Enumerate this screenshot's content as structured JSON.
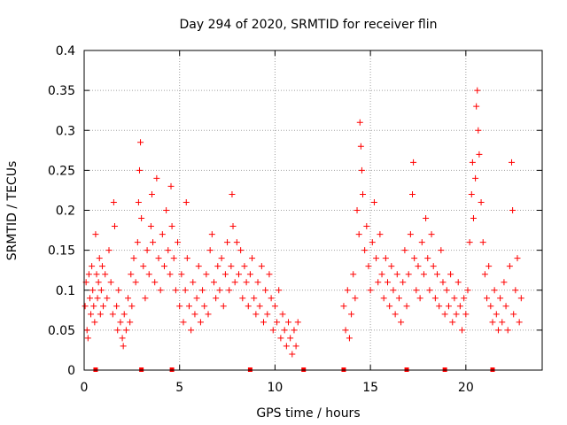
{
  "chart_data": {
    "type": "scatter",
    "title": "Day 294 of 2020, SRMTID for receiver flin",
    "xlabel": "GPS time / hours",
    "ylabel": "SRMTID / TECUs",
    "xlim": [
      0,
      24
    ],
    "ylim": [
      0,
      0.4
    ],
    "xticks": [
      0,
      5,
      10,
      15,
      20
    ],
    "xtick_labels": [
      "0",
      "5",
      "10",
      "15",
      "20"
    ],
    "yticks": [
      0,
      0.05,
      0.1,
      0.15,
      0.2,
      0.25,
      0.3,
      0.35,
      0.4
    ],
    "ytick_labels": [
      "0",
      "0.05",
      "0.1",
      "0.15",
      "0.2",
      "0.25",
      "0.3",
      "0.35",
      "0.4"
    ],
    "grid": true,
    "marker": "+",
    "color": "#ff0000",
    "series": [
      {
        "name": "SRMTID",
        "points": [
          [
            0.05,
            0.08
          ],
          [
            0.1,
            0.11
          ],
          [
            0.15,
            0.05
          ],
          [
            0.2,
            0.04
          ],
          [
            0.25,
            0.12
          ],
          [
            0.3,
            0.09
          ],
          [
            0.35,
            0.07
          ],
          [
            0.4,
            0.13
          ],
          [
            0.45,
            0.1
          ],
          [
            0.5,
            0.08
          ],
          [
            0.55,
            0.06
          ],
          [
            0.6,
            0.17
          ],
          [
            0.65,
            0.12
          ],
          [
            0.7,
            0.09
          ],
          [
            0.75,
            0.11
          ],
          [
            0.8,
            0.14
          ],
          [
            0.85,
            0.07
          ],
          [
            0.9,
            0.1
          ],
          [
            0.95,
            0.13
          ],
          [
            1.0,
            0.08
          ],
          [
            1.1,
            0.12
          ],
          [
            1.2,
            0.09
          ],
          [
            1.3,
            0.15
          ],
          [
            1.4,
            0.11
          ],
          [
            1.5,
            0.07
          ],
          [
            1.55,
            0.21
          ],
          [
            1.6,
            0.18
          ],
          [
            1.7,
            0.08
          ],
          [
            1.75,
            0.05
          ],
          [
            1.8,
            0.1
          ],
          [
            1.9,
            0.06
          ],
          [
            2.0,
            0.04
          ],
          [
            2.05,
            0.03
          ],
          [
            2.1,
            0.07
          ],
          [
            2.2,
            0.05
          ],
          [
            2.3,
            0.09
          ],
          [
            2.4,
            0.06
          ],
          [
            2.45,
            0.12
          ],
          [
            2.5,
            0.08
          ],
          [
            2.6,
            0.14
          ],
          [
            2.7,
            0.11
          ],
          [
            2.8,
            0.16
          ],
          [
            2.85,
            0.21
          ],
          [
            2.9,
            0.25
          ],
          [
            2.95,
            0.285
          ],
          [
            3.0,
            0.19
          ],
          [
            3.1,
            0.13
          ],
          [
            3.2,
            0.09
          ],
          [
            3.3,
            0.15
          ],
          [
            3.4,
            0.12
          ],
          [
            3.5,
            0.18
          ],
          [
            3.55,
            0.22
          ],
          [
            3.6,
            0.16
          ],
          [
            3.7,
            0.11
          ],
          [
            3.8,
            0.24
          ],
          [
            3.9,
            0.14
          ],
          [
            4.0,
            0.1
          ],
          [
            4.1,
            0.17
          ],
          [
            4.2,
            0.13
          ],
          [
            4.3,
            0.2
          ],
          [
            4.4,
            0.15
          ],
          [
            4.5,
            0.12
          ],
          [
            4.55,
            0.23
          ],
          [
            4.6,
            0.18
          ],
          [
            4.7,
            0.14
          ],
          [
            4.8,
            0.1
          ],
          [
            4.9,
            0.16
          ],
          [
            5.0,
            0.08
          ],
          [
            5.1,
            0.12
          ],
          [
            5.2,
            0.06
          ],
          [
            5.3,
            0.1
          ],
          [
            5.35,
            0.21
          ],
          [
            5.4,
            0.14
          ],
          [
            5.5,
            0.08
          ],
          [
            5.6,
            0.05
          ],
          [
            5.7,
            0.11
          ],
          [
            5.8,
            0.07
          ],
          [
            5.9,
            0.09
          ],
          [
            6.0,
            0.13
          ],
          [
            6.1,
            0.06
          ],
          [
            6.2,
            0.1
          ],
          [
            6.3,
            0.08
          ],
          [
            6.4,
            0.12
          ],
          [
            6.5,
            0.07
          ],
          [
            6.6,
            0.15
          ],
          [
            6.7,
            0.17
          ],
          [
            6.8,
            0.11
          ],
          [
            6.9,
            0.09
          ],
          [
            7.0,
            0.13
          ],
          [
            7.1,
            0.1
          ],
          [
            7.2,
            0.14
          ],
          [
            7.3,
            0.08
          ],
          [
            7.4,
            0.12
          ],
          [
            7.5,
            0.16
          ],
          [
            7.6,
            0.1
          ],
          [
            7.7,
            0.13
          ],
          [
            7.75,
            0.22
          ],
          [
            7.8,
            0.18
          ],
          [
            7.9,
            0.11
          ],
          [
            8.0,
            0.16
          ],
          [
            8.1,
            0.12
          ],
          [
            8.2,
            0.15
          ],
          [
            8.3,
            0.09
          ],
          [
            8.4,
            0.13
          ],
          [
            8.5,
            0.11
          ],
          [
            8.6,
            0.08
          ],
          [
            8.7,
            0.12
          ],
          [
            8.8,
            0.14
          ],
          [
            8.9,
            0.09
          ],
          [
            9.0,
            0.07
          ],
          [
            9.1,
            0.11
          ],
          [
            9.2,
            0.08
          ],
          [
            9.3,
            0.13
          ],
          [
            9.4,
            0.06
          ],
          [
            9.5,
            0.1
          ],
          [
            9.6,
            0.07
          ],
          [
            9.7,
            0.12
          ],
          [
            9.8,
            0.09
          ],
          [
            9.9,
            0.05
          ],
          [
            10.0,
            0.08
          ],
          [
            10.1,
            0.06
          ],
          [
            10.2,
            0.1
          ],
          [
            10.3,
            0.04
          ],
          [
            10.4,
            0.07
          ],
          [
            10.5,
            0.05
          ],
          [
            10.6,
            0.03
          ],
          [
            10.7,
            0.06
          ],
          [
            10.8,
            0.04
          ],
          [
            10.9,
            0.02
          ],
          [
            11.0,
            0.05
          ],
          [
            11.1,
            0.03
          ],
          [
            11.2,
            0.06
          ],
          [
            13.6,
            0.08
          ],
          [
            13.7,
            0.05
          ],
          [
            13.8,
            0.1
          ],
          [
            13.9,
            0.04
          ],
          [
            14.0,
            0.07
          ],
          [
            14.1,
            0.12
          ],
          [
            14.2,
            0.09
          ],
          [
            14.3,
            0.2
          ],
          [
            14.4,
            0.17
          ],
          [
            14.45,
            0.31
          ],
          [
            14.5,
            0.28
          ],
          [
            14.55,
            0.25
          ],
          [
            14.6,
            0.22
          ],
          [
            14.7,
            0.15
          ],
          [
            14.8,
            0.18
          ],
          [
            14.9,
            0.13
          ],
          [
            15.0,
            0.1
          ],
          [
            15.1,
            0.16
          ],
          [
            15.2,
            0.21
          ],
          [
            15.3,
            0.14
          ],
          [
            15.4,
            0.11
          ],
          [
            15.5,
            0.17
          ],
          [
            15.6,
            0.12
          ],
          [
            15.7,
            0.09
          ],
          [
            15.8,
            0.14
          ],
          [
            15.9,
            0.11
          ],
          [
            16.0,
            0.08
          ],
          [
            16.1,
            0.13
          ],
          [
            16.2,
            0.1
          ],
          [
            16.3,
            0.07
          ],
          [
            16.4,
            0.12
          ],
          [
            16.5,
            0.09
          ],
          [
            16.6,
            0.06
          ],
          [
            16.7,
            0.11
          ],
          [
            16.8,
            0.15
          ],
          [
            16.9,
            0.08
          ],
          [
            17.0,
            0.12
          ],
          [
            17.1,
            0.17
          ],
          [
            17.2,
            0.22
          ],
          [
            17.25,
            0.26
          ],
          [
            17.3,
            0.14
          ],
          [
            17.4,
            0.1
          ],
          [
            17.5,
            0.13
          ],
          [
            17.6,
            0.09
          ],
          [
            17.7,
            0.16
          ],
          [
            17.8,
            0.12
          ],
          [
            17.9,
            0.19
          ],
          [
            18.0,
            0.14
          ],
          [
            18.1,
            0.1
          ],
          [
            18.2,
            0.17
          ],
          [
            18.3,
            0.13
          ],
          [
            18.4,
            0.09
          ],
          [
            18.5,
            0.12
          ],
          [
            18.6,
            0.08
          ],
          [
            18.7,
            0.15
          ],
          [
            18.8,
            0.11
          ],
          [
            18.9,
            0.07
          ],
          [
            19.0,
            0.1
          ],
          [
            19.1,
            0.08
          ],
          [
            19.2,
            0.12
          ],
          [
            19.3,
            0.06
          ],
          [
            19.4,
            0.09
          ],
          [
            19.5,
            0.07
          ],
          [
            19.6,
            0.11
          ],
          [
            19.7,
            0.08
          ],
          [
            19.8,
            0.05
          ],
          [
            19.9,
            0.09
          ],
          [
            20.0,
            0.07
          ],
          [
            20.1,
            0.1
          ],
          [
            20.2,
            0.16
          ],
          [
            20.3,
            0.22
          ],
          [
            20.35,
            0.26
          ],
          [
            20.4,
            0.19
          ],
          [
            20.5,
            0.24
          ],
          [
            20.55,
            0.33
          ],
          [
            20.6,
            0.35
          ],
          [
            20.65,
            0.3
          ],
          [
            20.7,
            0.27
          ],
          [
            20.8,
            0.21
          ],
          [
            20.9,
            0.16
          ],
          [
            21.0,
            0.12
          ],
          [
            21.1,
            0.09
          ],
          [
            21.2,
            0.13
          ],
          [
            21.3,
            0.08
          ],
          [
            21.4,
            0.06
          ],
          [
            21.5,
            0.1
          ],
          [
            21.6,
            0.07
          ],
          [
            21.7,
            0.05
          ],
          [
            21.8,
            0.09
          ],
          [
            21.9,
            0.06
          ],
          [
            22.0,
            0.11
          ],
          [
            22.1,
            0.08
          ],
          [
            22.2,
            0.05
          ],
          [
            22.3,
            0.13
          ],
          [
            22.4,
            0.26
          ],
          [
            22.45,
            0.2
          ],
          [
            22.5,
            0.07
          ],
          [
            22.6,
            0.1
          ],
          [
            22.7,
            0.14
          ],
          [
            22.8,
            0.06
          ],
          [
            22.9,
            0.09
          ]
        ]
      }
    ],
    "axis_markers": [
      0.6,
      3.0,
      4.6,
      8.7,
      11.5,
      13.6,
      16.9,
      18.9,
      21.4
    ]
  }
}
